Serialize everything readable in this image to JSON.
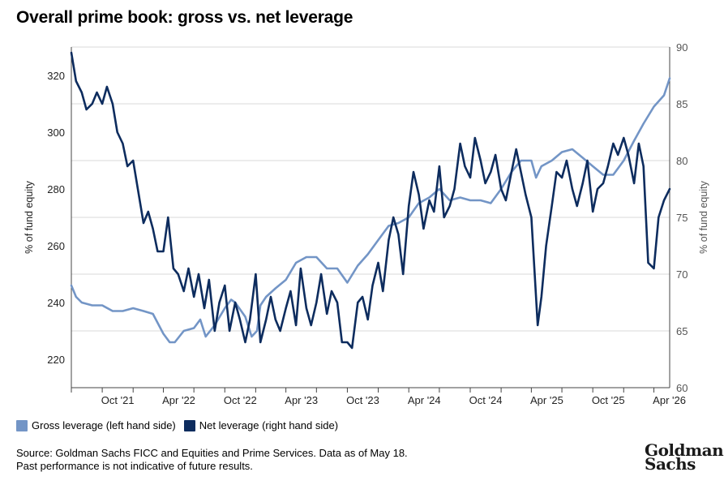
{
  "title": "Overall prime book: gross vs. net leverage",
  "legend": {
    "gross": "Gross leverage (left hand side)",
    "net": "Net leverage (right hand side)"
  },
  "footer": {
    "source": "Source: Goldman Sachs FICC and Equities and Prime Services. Data as of May 18.",
    "disclaimer": "Past performance is not indicative of future results."
  },
  "logo": {
    "line1": "Goldman",
    "line2": "Sachs"
  },
  "colors": {
    "gross": "#7395c6",
    "net": "#0d2c5e",
    "grid": "#d9d9d9",
    "axis": "#444444"
  },
  "chart_data": {
    "type": "line",
    "title": "Overall prime book: gross vs. net leverage",
    "x_range": [
      "2021-07-01",
      "2026-05-18"
    ],
    "x_ticks": [
      {
        "label": "Oct '21",
        "date": "2021-10-01"
      },
      {
        "label": "Apr '22",
        "date": "2022-04-01"
      },
      {
        "label": "Oct '22",
        "date": "2022-10-01"
      },
      {
        "label": "Apr '23",
        "date": "2023-04-01"
      },
      {
        "label": "Oct '23",
        "date": "2023-10-01"
      },
      {
        "label": "Apr '24",
        "date": "2024-04-01"
      },
      {
        "label": "Oct '24",
        "date": "2024-10-01"
      },
      {
        "label": "Apr '25",
        "date": "2025-04-01"
      },
      {
        "label": "Oct '25",
        "date": "2025-10-01"
      },
      {
        "label": "Apr '26",
        "date": "2026-04-01"
      }
    ],
    "y_left": {
      "label": "% of fund equity",
      "ticks": [
        220,
        240,
        260,
        280,
        300,
        320
      ]
    },
    "y_right": {
      "label": "% of fund equity",
      "ticks": [
        60,
        65,
        70,
        75,
        80,
        85,
        90
      ]
    },
    "grid": "horizontal",
    "legend_position": "bottom-left",
    "series": [
      {
        "name": "Gross leverage (left hand side)",
        "axis": "left",
        "x": [
          "2021-07-01",
          "2021-07-15",
          "2021-08-01",
          "2021-09-01",
          "2021-10-01",
          "2021-11-01",
          "2021-12-01",
          "2022-01-01",
          "2022-02-01",
          "2022-03-01",
          "2022-04-01",
          "2022-04-20",
          "2022-05-05",
          "2022-06-01",
          "2022-07-01",
          "2022-07-20",
          "2022-08-05",
          "2022-09-01",
          "2022-10-01",
          "2022-10-20",
          "2022-11-01",
          "2022-12-01",
          "2022-12-20",
          "2023-01-05",
          "2023-01-15",
          "2023-02-01",
          "2023-03-01",
          "2023-04-01",
          "2023-05-01",
          "2023-06-01",
          "2023-07-01",
          "2023-08-01",
          "2023-09-01",
          "2023-10-01",
          "2023-11-01",
          "2023-12-01",
          "2024-01-01",
          "2024-02-01",
          "2024-03-01",
          "2024-04-01",
          "2024-05-01",
          "2024-06-01",
          "2024-07-01",
          "2024-08-01",
          "2024-09-01",
          "2024-10-01",
          "2024-11-01",
          "2024-12-01",
          "2025-01-01",
          "2025-02-01",
          "2025-03-01",
          "2025-04-01",
          "2025-04-15",
          "2025-05-01",
          "2025-06-01",
          "2025-07-01",
          "2025-08-01",
          "2025-09-01",
          "2025-10-01",
          "2025-11-01",
          "2025-12-01",
          "2026-01-01",
          "2026-02-01",
          "2026-03-01",
          "2026-04-01",
          "2026-05-01",
          "2026-05-18"
        ],
        "values": [
          246,
          242,
          240,
          239,
          239,
          237,
          237,
          238,
          237,
          236,
          229,
          226,
          226,
          230,
          231,
          234,
          228,
          232,
          238,
          241,
          240,
          235,
          228,
          230,
          239,
          242,
          245,
          248,
          254,
          256,
          256,
          252,
          252,
          247,
          253,
          257,
          262,
          267,
          268,
          270,
          275,
          277,
          280,
          276,
          277,
          276,
          276,
          275,
          280,
          286,
          290,
          290,
          284,
          288,
          290,
          293,
          294,
          291,
          288,
          285,
          285,
          290,
          297,
          303,
          309,
          313,
          319
        ]
      },
      {
        "name": "Net leverage (right hand side)",
        "axis": "right",
        "x": [
          "2021-07-01",
          "2021-07-15",
          "2021-08-01",
          "2021-08-15",
          "2021-09-01",
          "2021-09-15",
          "2021-10-01",
          "2021-10-15",
          "2021-11-01",
          "2021-11-15",
          "2021-12-01",
          "2021-12-15",
          "2022-01-01",
          "2022-01-15",
          "2022-02-01",
          "2022-02-15",
          "2022-03-01",
          "2022-03-15",
          "2022-04-01",
          "2022-04-15",
          "2022-05-01",
          "2022-05-15",
          "2022-06-01",
          "2022-06-15",
          "2022-07-01",
          "2022-07-15",
          "2022-08-01",
          "2022-08-15",
          "2022-09-01",
          "2022-09-15",
          "2022-10-01",
          "2022-10-15",
          "2022-11-01",
          "2022-11-15",
          "2022-12-01",
          "2022-12-15",
          "2023-01-01",
          "2023-01-15",
          "2023-02-01",
          "2023-02-15",
          "2023-03-01",
          "2023-03-15",
          "2023-04-01",
          "2023-04-15",
          "2023-05-01",
          "2023-05-15",
          "2023-06-01",
          "2023-06-15",
          "2023-07-01",
          "2023-07-15",
          "2023-08-01",
          "2023-08-15",
          "2023-09-01",
          "2023-09-15",
          "2023-10-01",
          "2023-10-15",
          "2023-11-01",
          "2023-11-15",
          "2023-12-01",
          "2023-12-15",
          "2024-01-01",
          "2024-01-15",
          "2024-02-01",
          "2024-02-15",
          "2024-03-01",
          "2024-03-15",
          "2024-04-01",
          "2024-04-15",
          "2024-05-01",
          "2024-05-15",
          "2024-06-01",
          "2024-06-15",
          "2024-07-01",
          "2024-07-15",
          "2024-08-01",
          "2024-08-15",
          "2024-09-01",
          "2024-09-15",
          "2024-10-01",
          "2024-10-15",
          "2024-11-01",
          "2024-11-15",
          "2024-12-01",
          "2024-12-15",
          "2025-01-01",
          "2025-01-15",
          "2025-02-01",
          "2025-02-15",
          "2025-03-01",
          "2025-03-15",
          "2025-04-01",
          "2025-04-10",
          "2025-04-20",
          "2025-05-01",
          "2025-05-15",
          "2025-06-01",
          "2025-06-15",
          "2025-07-01",
          "2025-07-15",
          "2025-08-01",
          "2025-08-15",
          "2025-09-01",
          "2025-09-15",
          "2025-10-01",
          "2025-10-15",
          "2025-11-01",
          "2025-11-15",
          "2025-12-01",
          "2025-12-15",
          "2026-01-01",
          "2026-01-15",
          "2026-02-01",
          "2026-02-15",
          "2026-03-01",
          "2026-03-15",
          "2026-04-01",
          "2026-04-15",
          "2026-05-01",
          "2026-05-18"
        ],
        "values": [
          89.5,
          87.0,
          86.0,
          84.5,
          85.0,
          86.0,
          85.0,
          86.5,
          85.0,
          82.5,
          81.5,
          79.5,
          80.0,
          77.5,
          74.5,
          75.5,
          74.0,
          72.0,
          72.0,
          75.0,
          70.5,
          70.0,
          68.5,
          70.5,
          68.0,
          70.0,
          67.0,
          69.5,
          65.0,
          67.5,
          69.0,
          65.0,
          67.5,
          66.0,
          64.0,
          66.0,
          70.0,
          64.0,
          66.0,
          68.0,
          66.0,
          65.0,
          67.0,
          68.5,
          65.5,
          70.5,
          67.0,
          65.5,
          67.5,
          70.0,
          66.5,
          68.5,
          67.5,
          64.0,
          64.0,
          63.5,
          67.5,
          68.0,
          66.0,
          69.0,
          71.0,
          68.5,
          73.0,
          75.0,
          73.5,
          70.0,
          76.0,
          79.0,
          77.0,
          74.0,
          76.5,
          75.5,
          79.5,
          75.0,
          76.0,
          77.5,
          81.5,
          79.5,
          78.5,
          82.0,
          80.0,
          78.0,
          79.0,
          80.5,
          77.5,
          76.5,
          79.0,
          81.0,
          79.0,
          77.0,
          75.0,
          70.5,
          65.5,
          68.0,
          72.5,
          76.0,
          79.0,
          78.5,
          80.0,
          77.5,
          76.0,
          78.0,
          80.0,
          75.5,
          77.5,
          78.0,
          79.5,
          81.5,
          80.5,
          82.0,
          80.5,
          78.0,
          81.5,
          79.5,
          71.0,
          70.5,
          75.0,
          76.5,
          77.5
        ]
      }
    ]
  }
}
